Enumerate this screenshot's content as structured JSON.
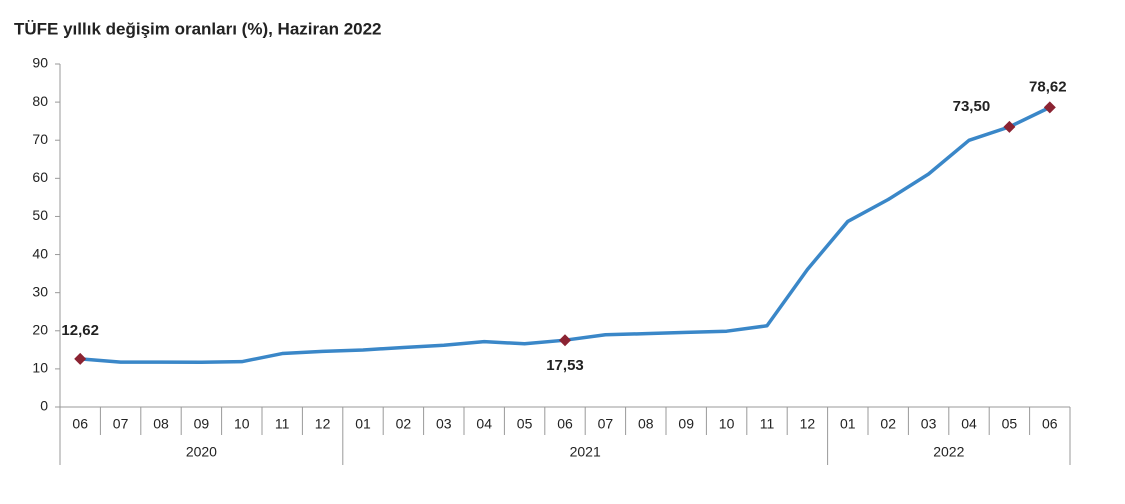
{
  "chart_data": {
    "type": "line",
    "title": "TÜFE yıllık değişim oranları (%), Haziran 2022",
    "categories": [
      "06",
      "07",
      "08",
      "09",
      "10",
      "11",
      "12",
      "01",
      "02",
      "03",
      "04",
      "05",
      "06",
      "07",
      "08",
      "09",
      "10",
      "11",
      "12",
      "01",
      "02",
      "03",
      "04",
      "05",
      "06"
    ],
    "years": [
      "2020",
      "2020",
      "2020",
      "2020",
      "2020",
      "2020",
      "2020",
      "2021",
      "2021",
      "2021",
      "2021",
      "2021",
      "2021",
      "2021",
      "2021",
      "2021",
      "2021",
      "2021",
      "2021",
      "2022",
      "2022",
      "2022",
      "2022",
      "2022",
      "2022"
    ],
    "series": [
      {
        "color": "#3a87c8",
        "values": [
          12.62,
          11.76,
          11.77,
          11.75,
          11.89,
          14.03,
          14.6,
          14.97,
          15.61,
          16.19,
          17.14,
          16.59,
          17.53,
          18.95,
          19.25,
          19.58,
          19.89,
          21.31,
          36.08,
          48.69,
          54.44,
          61.14,
          69.97,
          73.5,
          78.62
        ],
        "value_labels": [
          "12,62",
          null,
          null,
          null,
          null,
          null,
          null,
          null,
          null,
          null,
          null,
          null,
          "17,53",
          null,
          null,
          null,
          null,
          null,
          null,
          null,
          null,
          null,
          null,
          "73,50",
          "78,62"
        ]
      }
    ],
    "marker_color": "#8b2332",
    "ylim": [
      0,
      90
    ],
    "yticks": [
      0,
      10,
      20,
      30,
      40,
      50,
      60,
      70,
      80,
      90
    ],
    "grid": false
  }
}
